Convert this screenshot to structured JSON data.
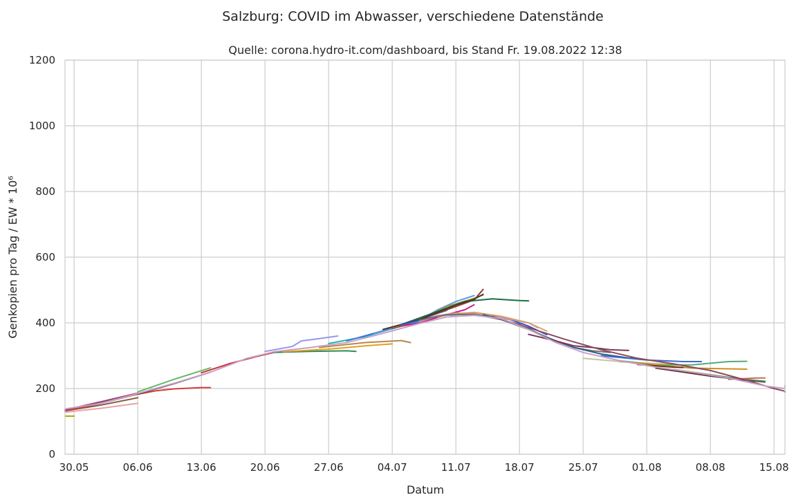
{
  "figure": {
    "suptitle": "Salzburg: COVID im Abwasser, verschiedene Datenstände"
  },
  "chart_data": {
    "type": "line",
    "title": "Quelle: corona.hydro-it.com/dashboard, bis Stand Fr. 19.08.2022 12:38",
    "xlabel": "Datum",
    "ylabel": "Genkopien pro Tag / EW * 10⁶",
    "x_unit": "days",
    "x_ticks": [
      {
        "x": 0,
        "label": "30.05"
      },
      {
        "x": 7,
        "label": "06.06"
      },
      {
        "x": 14,
        "label": "13.06"
      },
      {
        "x": 21,
        "label": "20.06"
      },
      {
        "x": 28,
        "label": "27.06"
      },
      {
        "x": 35,
        "label": "04.07"
      },
      {
        "x": 42,
        "label": "11.07"
      },
      {
        "x": 49,
        "label": "18.07"
      },
      {
        "x": 56,
        "label": "25.07"
      },
      {
        "x": 63,
        "label": "01.08"
      },
      {
        "x": 70,
        "label": "08.08"
      },
      {
        "x": 77,
        "label": "15.08"
      }
    ],
    "xlim": [
      -1,
      78.2
    ],
    "ylim": [
      0,
      1200
    ],
    "y_ticks": [
      0,
      200,
      400,
      600,
      800,
      1000,
      1200
    ],
    "grid": true,
    "background": "#ffffff",
    "grid_color": "#cccccc",
    "series": [
      {
        "color": "#a8a800",
        "points": [
          [
            -1,
            116
          ],
          [
            0,
            116
          ]
        ]
      },
      {
        "color": "#e8a0a8",
        "points": [
          [
            -1,
            128
          ],
          [
            3,
            140
          ],
          [
            7,
            155
          ]
        ]
      },
      {
        "color": "#7a5c3a",
        "points": [
          [
            -1,
            132
          ],
          [
            3,
            150
          ],
          [
            7,
            172
          ]
        ]
      },
      {
        "color": "#d43c3c",
        "points": [
          [
            -1,
            133
          ],
          [
            3,
            155
          ],
          [
            6.5,
            180
          ],
          [
            9,
            193
          ],
          [
            11,
            199
          ],
          [
            14,
            203
          ],
          [
            15,
            203
          ]
        ]
      },
      {
        "color": "#8a3c6e",
        "points": [
          [
            -1,
            135
          ],
          [
            3,
            160
          ],
          [
            7,
            186
          ]
        ]
      },
      {
        "color": "#66b866",
        "points": [
          [
            7,
            190
          ],
          [
            11,
            228
          ],
          [
            15,
            263
          ]
        ]
      },
      {
        "color": "#3c3c3c",
        "points": [
          [
            7,
            183
          ],
          [
            11,
            215
          ],
          [
            15,
            250
          ]
        ]
      },
      {
        "color": "#c83232",
        "points": [
          [
            14,
            248
          ],
          [
            17,
            275
          ],
          [
            20,
            297
          ],
          [
            22,
            310
          ]
        ]
      },
      {
        "color": "#9696e6",
        "points": [
          [
            21,
            313
          ],
          [
            24,
            328
          ],
          [
            25,
            345
          ],
          [
            27,
            352
          ],
          [
            29,
            360
          ]
        ]
      },
      {
        "color": "#2e8b57",
        "points": [
          [
            22,
            310
          ],
          [
            26,
            313
          ],
          [
            30,
            315
          ],
          [
            31,
            313
          ]
        ]
      },
      {
        "color": "#e0a020",
        "points": [
          [
            23,
            312
          ],
          [
            28,
            320
          ],
          [
            32,
            330
          ],
          [
            35,
            336
          ]
        ]
      },
      {
        "color": "#b8864b",
        "points": [
          [
            27,
            325
          ],
          [
            32,
            340
          ],
          [
            36,
            346
          ],
          [
            37,
            340
          ]
        ]
      },
      {
        "color": "#20b2aa",
        "points": [
          [
            28,
            337
          ],
          [
            32,
            358
          ],
          [
            36,
            390
          ],
          [
            38,
            405
          ]
        ]
      },
      {
        "color": "#3c78d8",
        "points": [
          [
            30,
            345
          ],
          [
            36,
            392
          ],
          [
            39,
            420
          ],
          [
            41,
            438
          ]
        ]
      },
      {
        "color": "#5a9ae6",
        "points": [
          [
            33,
            368
          ],
          [
            36,
            390
          ],
          [
            38,
            408
          ],
          [
            40,
            440
          ],
          [
            42,
            465
          ],
          [
            44,
            483
          ]
        ]
      },
      {
        "color": "#c81e8c",
        "points": [
          [
            35,
            385
          ],
          [
            38,
            400
          ],
          [
            41,
            425
          ],
          [
            43,
            440
          ],
          [
            44,
            455
          ]
        ]
      },
      {
        "color": "#8b3a3a",
        "points": [
          [
            35,
            383
          ],
          [
            38,
            410
          ],
          [
            41,
            440
          ],
          [
            43,
            460
          ],
          [
            44,
            470
          ],
          [
            45,
            502
          ]
        ]
      },
      {
        "color": "#9a9a40",
        "points": [
          [
            35,
            385
          ],
          [
            38,
            410
          ],
          [
            41,
            450
          ],
          [
            44,
            475
          ],
          [
            45,
            485
          ]
        ]
      },
      {
        "color": "#1f6b47",
        "points": [
          [
            36,
            395
          ],
          [
            40,
            435
          ],
          [
            43,
            465
          ],
          [
            46,
            473
          ],
          [
            49,
            468
          ],
          [
            50,
            467
          ]
        ]
      },
      {
        "color": "#4b3621",
        "points": [
          [
            34,
            380
          ],
          [
            38,
            410
          ],
          [
            42,
            455
          ],
          [
            44,
            472
          ],
          [
            45,
            487
          ]
        ]
      },
      {
        "color": "#3050c0",
        "points": [
          [
            36,
            395
          ],
          [
            38,
            408
          ],
          [
            40,
            422
          ],
          [
            43,
            426
          ],
          [
            45,
            425
          ],
          [
            48,
            410
          ],
          [
            50,
            390
          ],
          [
            52,
            364
          ]
        ]
      },
      {
        "color": "#cc9999",
        "points": [
          [
            38,
            405
          ],
          [
            40,
            422
          ],
          [
            42,
            430
          ],
          [
            44,
            428
          ],
          [
            47,
            416
          ],
          [
            50,
            400
          ],
          [
            51,
            385
          ]
        ]
      },
      {
        "color": "#d4a070",
        "points": [
          [
            40,
            418
          ],
          [
            42,
            428
          ],
          [
            44,
            432
          ],
          [
            47,
            420
          ],
          [
            50,
            400
          ],
          [
            52,
            375
          ]
        ]
      },
      {
        "color": "#707070",
        "points": [
          [
            38,
            408
          ],
          [
            41,
            425
          ],
          [
            44,
            426
          ],
          [
            47,
            410
          ],
          [
            50,
            380
          ],
          [
            53,
            345
          ],
          [
            55,
            325
          ],
          [
            57,
            315
          ],
          [
            59,
            310
          ]
        ]
      },
      {
        "color": "#2c5f8a",
        "points": [
          [
            45,
            425
          ],
          [
            49,
            395
          ],
          [
            52,
            355
          ],
          [
            55,
            325
          ],
          [
            58,
            305
          ],
          [
            61,
            293
          ],
          [
            62,
            292
          ]
        ]
      },
      {
        "color": "#3b6cc9",
        "points": [
          [
            58,
            300
          ],
          [
            63,
            287
          ],
          [
            67,
            282
          ],
          [
            69,
            282
          ]
        ]
      },
      {
        "color": "#c4c4a0",
        "points": [
          [
            56,
            292
          ],
          [
            61,
            280
          ],
          [
            65,
            275
          ],
          [
            66,
            274
          ]
        ]
      },
      {
        "color": "#7a3a5a",
        "points": [
          [
            50,
            365
          ],
          [
            53,
            345
          ],
          [
            55,
            330
          ],
          [
            57,
            325
          ],
          [
            59,
            318
          ],
          [
            61,
            316
          ]
        ]
      },
      {
        "color": "#55aa77",
        "points": [
          [
            60,
            285
          ],
          [
            64,
            272
          ],
          [
            68,
            272
          ],
          [
            72,
            282
          ],
          [
            74,
            283
          ]
        ]
      },
      {
        "color": "#d08c1c",
        "points": [
          [
            60,
            283
          ],
          [
            64,
            272
          ],
          [
            68,
            262
          ],
          [
            72,
            260
          ],
          [
            74,
            259
          ]
        ]
      },
      {
        "color": "#5c3a1e",
        "points": [
          [
            62,
            273
          ],
          [
            66,
            265
          ],
          [
            67,
            264
          ]
        ]
      },
      {
        "color": "#6a2c2c",
        "points": [
          [
            64,
            262
          ],
          [
            70,
            238
          ],
          [
            74,
            225
          ],
          [
            76,
            220
          ]
        ]
      },
      {
        "color": "#3e8e5e",
        "points": [
          [
            66,
            258
          ],
          [
            70,
            242
          ],
          [
            73,
            230
          ],
          [
            76,
            222
          ]
        ]
      },
      {
        "color": "#cc6666",
        "points": [
          [
            72,
            228
          ],
          [
            75,
            232
          ],
          [
            76,
            232
          ]
        ]
      },
      {
        "color": "#8b4a5c",
        "points": [
          [
            46,
            420
          ],
          [
            50,
            385
          ],
          [
            54,
            350
          ],
          [
            58,
            318
          ],
          [
            62,
            292
          ],
          [
            66,
            275
          ],
          [
            70,
            255
          ],
          [
            74,
            225
          ],
          [
            77,
            200
          ],
          [
            79,
            192
          ],
          [
            80,
            189
          ]
        ]
      },
      {
        "color": "#c8a0c8",
        "points": [
          [
            -1,
            138
          ],
          [
            3,
            155
          ],
          [
            7,
            185
          ],
          [
            11,
            216
          ],
          [
            15,
            250
          ],
          [
            19,
            292
          ],
          [
            22,
            312
          ],
          [
            26,
            325
          ],
          [
            30,
            340
          ],
          [
            34,
            368
          ],
          [
            38,
            398
          ],
          [
            41,
            418
          ],
          [
            44,
            423
          ],
          [
            47,
            413
          ],
          [
            50,
            380
          ],
          [
            53,
            340
          ],
          [
            56,
            310
          ],
          [
            60,
            285
          ],
          [
            64,
            265
          ],
          [
            68,
            250
          ],
          [
            72,
            232
          ],
          [
            76,
            208
          ],
          [
            79,
            200
          ],
          [
            81,
            200
          ],
          [
            82,
            210
          ]
        ]
      }
    ]
  }
}
